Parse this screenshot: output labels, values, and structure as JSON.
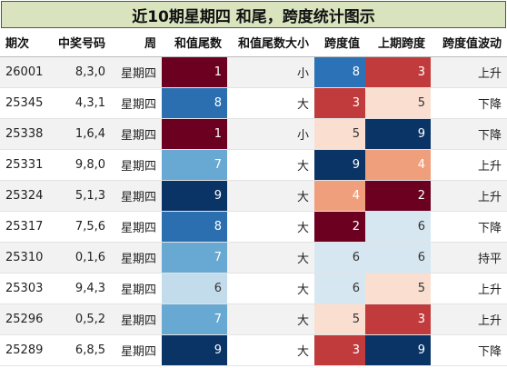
{
  "title": "近10期星期四 和尾，跨度统计图示",
  "headers": [
    "期次",
    "中奖号码",
    "周",
    "和值尾数",
    "和值尾数大小",
    "跨度值",
    "上期跨度",
    "跨度值波动"
  ],
  "rows": [
    {
      "period": "26001",
      "numbers": "8,3,0",
      "weekday": "星期四",
      "sum_tail": "1",
      "sum_tail_size": "小",
      "span": "8",
      "prev_span": "3",
      "span_trend": "上升",
      "sum_tail_color": "#6b0020",
      "span_color": "#2b72b6",
      "prev_span_color": "#c23b3c"
    },
    {
      "period": "25345",
      "numbers": "4,3,1",
      "weekday": "星期四",
      "sum_tail": "8",
      "sum_tail_size": "大",
      "span": "3",
      "prev_span": "5",
      "span_trend": "下降",
      "sum_tail_color": "#2b6fb1",
      "span_color": "#c23b3c",
      "prev_span_color": "#fadfd1"
    },
    {
      "period": "25338",
      "numbers": "1,6,4",
      "weekday": "星期四",
      "sum_tail": "1",
      "sum_tail_size": "小",
      "span": "5",
      "prev_span": "9",
      "span_trend": "下降",
      "sum_tail_color": "#6b0020",
      "span_color": "#fadfd1",
      "prev_span_color": "#0b3466"
    },
    {
      "period": "25331",
      "numbers": "9,8,0",
      "weekday": "星期四",
      "sum_tail": "7",
      "sum_tail_size": "大",
      "span": "9",
      "prev_span": "4",
      "span_trend": "上升",
      "sum_tail_color": "#67a9d3",
      "span_color": "#0b3466",
      "prev_span_color": "#f09f7d"
    },
    {
      "period": "25324",
      "numbers": "5,1,3",
      "weekday": "星期四",
      "sum_tail": "9",
      "sum_tail_size": "大",
      "span": "4",
      "prev_span": "2",
      "span_trend": "上升",
      "sum_tail_color": "#0b3466",
      "span_color": "#f09f7d",
      "prev_span_color": "#6b0020"
    },
    {
      "period": "25317",
      "numbers": "7,5,6",
      "weekday": "星期四",
      "sum_tail": "8",
      "sum_tail_size": "大",
      "span": "2",
      "prev_span": "6",
      "span_trend": "下降",
      "sum_tail_color": "#2b6fb1",
      "span_color": "#6b0020",
      "prev_span_color": "#d7e7f1"
    },
    {
      "period": "25310",
      "numbers": "0,1,6",
      "weekday": "星期四",
      "sum_tail": "7",
      "sum_tail_size": "大",
      "span": "6",
      "prev_span": "6",
      "span_trend": "持平",
      "sum_tail_color": "#67a9d3",
      "span_color": "#d7e7f1",
      "prev_span_color": "#d7e7f1"
    },
    {
      "period": "25303",
      "numbers": "9,4,3",
      "weekday": "星期四",
      "sum_tail": "6",
      "sum_tail_size": "大",
      "span": "6",
      "prev_span": "5",
      "span_trend": "上升",
      "sum_tail_color": "#c3dcec",
      "span_color": "#d7e7f1",
      "prev_span_color": "#fadfd1"
    },
    {
      "period": "25296",
      "numbers": "0,5,2",
      "weekday": "星期四",
      "sum_tail": "7",
      "sum_tail_size": "大",
      "span": "5",
      "prev_span": "3",
      "span_trend": "上升",
      "sum_tail_color": "#67a9d3",
      "span_color": "#fadfd1",
      "prev_span_color": "#c23b3c"
    },
    {
      "period": "25289",
      "numbers": "6,8,5",
      "weekday": "星期四",
      "sum_tail": "9",
      "sum_tail_size": "大",
      "span": "3",
      "prev_span": "9",
      "span_trend": "下降",
      "sum_tail_color": "#0b3466",
      "span_color": "#c23b3c",
      "prev_span_color": "#0b3466"
    }
  ]
}
